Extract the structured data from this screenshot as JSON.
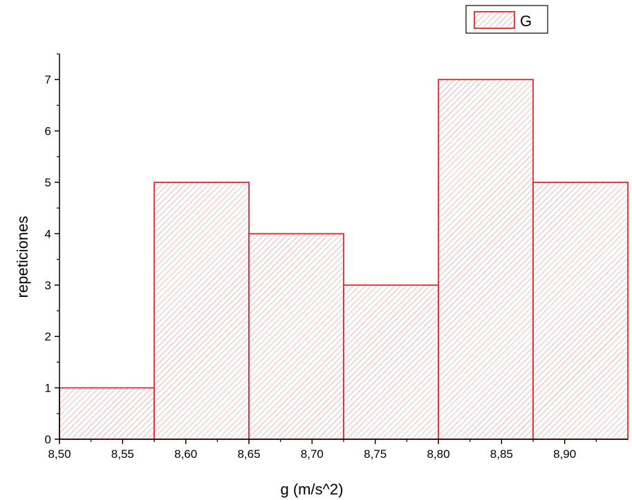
{
  "chart_data": {
    "type": "bar",
    "subtype": "histogram",
    "bins": [
      {
        "start": 8.5,
        "end": 8.575,
        "count": 1
      },
      {
        "start": 8.575,
        "end": 8.65,
        "count": 5
      },
      {
        "start": 8.65,
        "end": 8.725,
        "count": 4
      },
      {
        "start": 8.725,
        "end": 8.8,
        "count": 3
      },
      {
        "start": 8.8,
        "end": 8.875,
        "count": 7
      },
      {
        "start": 8.875,
        "end": 8.95,
        "count": 5
      }
    ],
    "series_name": "G",
    "xlabel": "g (m/s^2)",
    "ylabel": "repeticiones",
    "xlim": [
      8.5,
      8.95
    ],
    "ylim": [
      0,
      7.5
    ],
    "x_ticks": [
      "8,50",
      "8,55",
      "8,60",
      "8,65",
      "8,70",
      "8,75",
      "8,80",
      "8,85",
      "8,90"
    ],
    "y_ticks": [
      "0",
      "1",
      "2",
      "3",
      "4",
      "5",
      "6",
      "7"
    ],
    "grid": false,
    "legend_position": "top-right",
    "fill_pattern": "diagonal-hatch",
    "bar_color": "#e8262b",
    "hatch_color": "#e07a7a"
  }
}
